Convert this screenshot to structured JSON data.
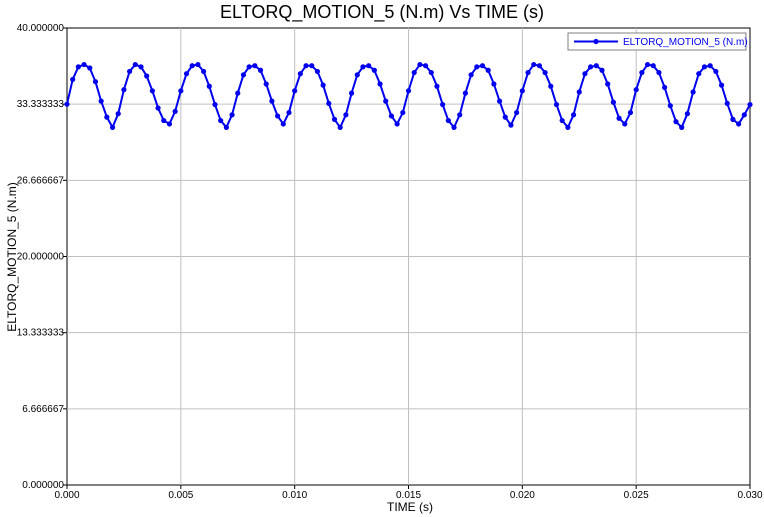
{
  "chart_data": {
    "type": "line",
    "title": "ELTORQ_MOTION_5  (N.m) Vs TIME (s)",
    "xlabel": "TIME (s)",
    "ylabel": "ELTORQ_MOTION_5  (N.m)",
    "xlim": [
      0.0,
      0.03
    ],
    "ylim": [
      0.0,
      40.0
    ],
    "xticks": [
      "0.000",
      "0.005",
      "0.010",
      "0.015",
      "0.020",
      "0.025",
      "0.030"
    ],
    "yticks": [
      "0.000000",
      "6.666667",
      "13.333333",
      "20.000000",
      "26.666667",
      "33.333333",
      "40.000000"
    ],
    "grid": true,
    "legend_position": "top-right",
    "colors": {
      "series": "#0000ee",
      "grid": "#c0c0c0",
      "axis": "#000000"
    },
    "series": [
      {
        "name": "ELTORQ_MOTION_5 (N.m)",
        "approx_model": "y ≈ 34.2 + 2.7*cos(2*pi*(t-0.0008)/0.0025)",
        "x": [
          0.0,
          0.00025,
          0.0005,
          0.00075,
          0.001,
          0.00125,
          0.0015,
          0.00175,
          0.002,
          0.00225,
          0.0025,
          0.00275,
          0.003,
          0.00325,
          0.0035,
          0.00375,
          0.004,
          0.00425,
          0.0045,
          0.00475,
          0.005,
          0.00525,
          0.0055,
          0.00575,
          0.006,
          0.00625,
          0.0065,
          0.00675,
          0.007,
          0.00725,
          0.0075,
          0.00775,
          0.008,
          0.00825,
          0.0085,
          0.00875,
          0.009,
          0.00925,
          0.0095,
          0.00975,
          0.01,
          0.01025,
          0.0105,
          0.01075,
          0.011,
          0.01125,
          0.0115,
          0.01175,
          0.012,
          0.01225,
          0.0125,
          0.01275,
          0.013,
          0.01325,
          0.0135,
          0.01375,
          0.014,
          0.01425,
          0.0145,
          0.01475,
          0.015,
          0.01525,
          0.0155,
          0.01575,
          0.016,
          0.01625,
          0.0165,
          0.01675,
          0.017,
          0.01725,
          0.0175,
          0.01775,
          0.018,
          0.01825,
          0.0185,
          0.01875,
          0.019,
          0.01925,
          0.0195,
          0.01975,
          0.02,
          0.02025,
          0.0205,
          0.02075,
          0.021,
          0.02125,
          0.0215,
          0.02175,
          0.022,
          0.02225,
          0.0225,
          0.02275,
          0.023,
          0.02325,
          0.0235,
          0.02375,
          0.024,
          0.02425,
          0.0245,
          0.02475,
          0.025,
          0.02525,
          0.0255,
          0.02575,
          0.026,
          0.02625,
          0.0265,
          0.02675,
          0.027,
          0.02725,
          0.0275,
          0.02775,
          0.028,
          0.02825,
          0.0285,
          0.02875,
          0.029,
          0.02925,
          0.0295,
          0.02975,
          0.03
        ],
        "values": [
          33.33,
          35.5,
          36.6,
          36.8,
          36.5,
          35.3,
          33.6,
          32.2,
          31.3,
          32.5,
          34.6,
          36.2,
          36.8,
          36.6,
          35.8,
          34.5,
          33.0,
          31.9,
          31.6,
          32.7,
          34.5,
          36.0,
          36.7,
          36.8,
          36.2,
          34.9,
          33.3,
          31.9,
          31.3,
          32.4,
          34.3,
          35.9,
          36.6,
          36.7,
          36.3,
          35.1,
          33.6,
          32.3,
          31.6,
          32.6,
          34.5,
          36.0,
          36.7,
          36.7,
          36.2,
          35.0,
          33.4,
          32.0,
          31.3,
          32.4,
          34.3,
          35.9,
          36.6,
          36.7,
          36.3,
          35.1,
          33.6,
          32.3,
          31.6,
          32.6,
          34.5,
          36.1,
          36.8,
          36.7,
          36.1,
          34.9,
          33.3,
          31.9,
          31.3,
          32.4,
          34.3,
          35.9,
          36.6,
          36.7,
          36.3,
          35.1,
          33.6,
          32.2,
          31.5,
          32.6,
          34.5,
          36.1,
          36.8,
          36.7,
          36.1,
          34.9,
          33.3,
          31.9,
          31.3,
          32.4,
          34.4,
          36.0,
          36.6,
          36.7,
          36.3,
          35.1,
          33.5,
          32.1,
          31.6,
          32.6,
          34.6,
          36.1,
          36.8,
          36.7,
          36.1,
          34.8,
          33.2,
          31.8,
          31.3,
          32.5,
          34.4,
          36.0,
          36.6,
          36.7,
          36.2,
          35.0,
          33.4,
          32.0,
          31.6,
          32.4,
          33.3
        ]
      }
    ]
  }
}
